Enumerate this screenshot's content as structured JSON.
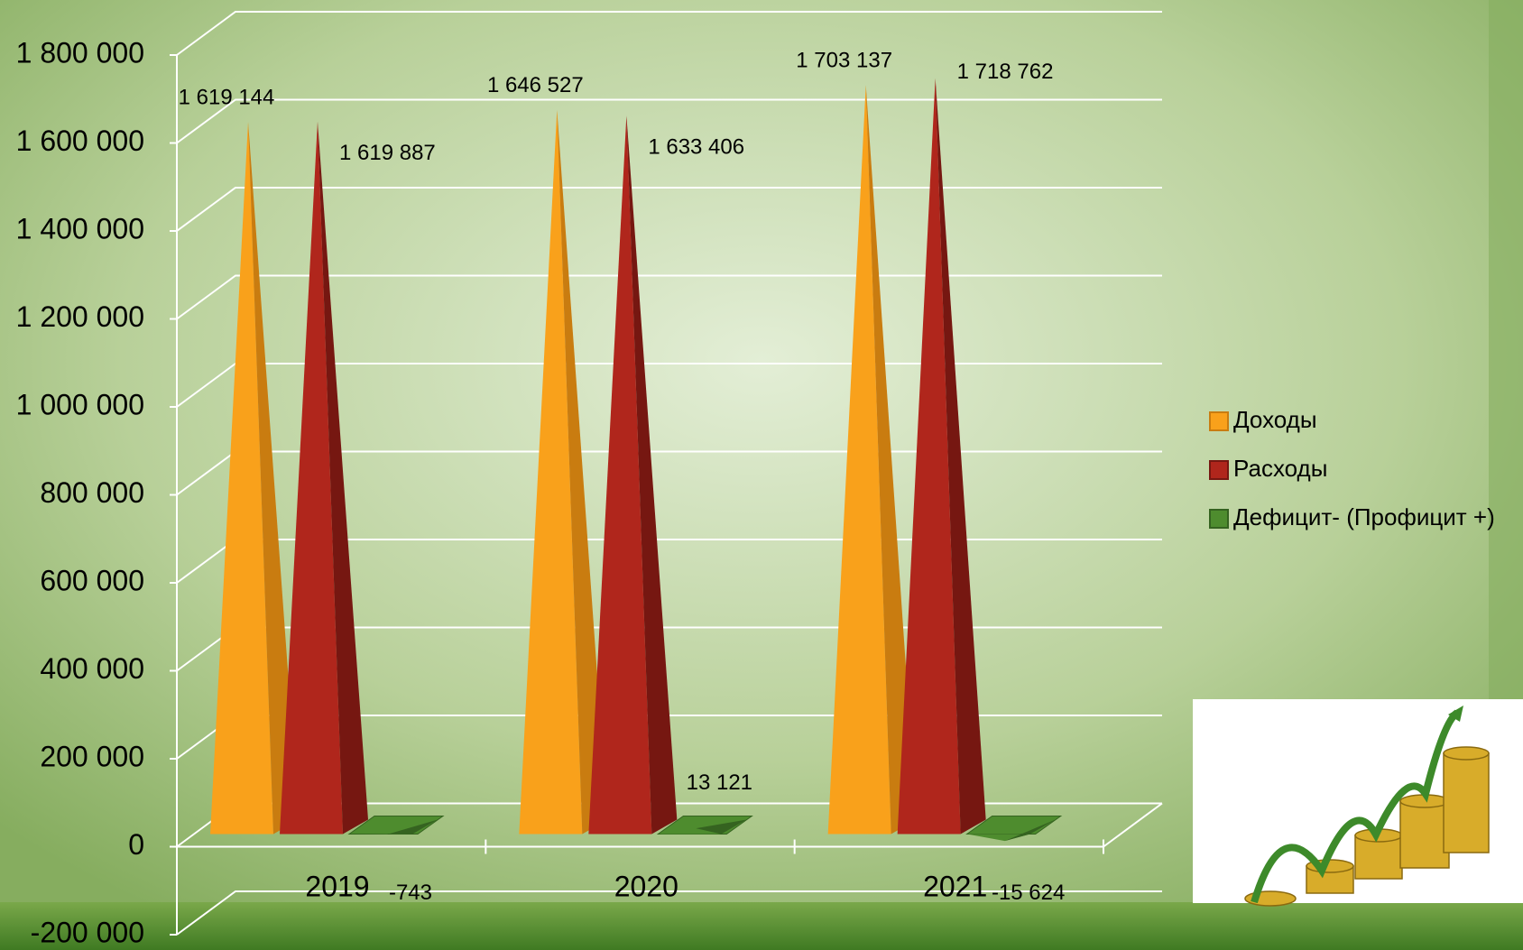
{
  "chart_data": {
    "type": "pyramid3d",
    "categories": [
      "2019",
      "2020",
      "2021"
    ],
    "series": [
      {
        "name": "Доходы",
        "color": "#f9a11b",
        "values": [
          1619144,
          1646527,
          1703137
        ],
        "value_labels": [
          "1 619 144",
          "1 646 527",
          "1 703 137"
        ]
      },
      {
        "name": "Расходы",
        "color": "#b0261c",
        "values": [
          1619887,
          1633406,
          1718762
        ],
        "value_labels": [
          "1 619 887",
          "1 633 406",
          "1 718 762"
        ]
      },
      {
        "name": "Дефицит- (Профицит +)",
        "color": "#4e8c2e",
        "values": [
          -743,
          13121,
          -15624
        ],
        "value_labels": [
          "-743",
          "13 121",
          "-15 624"
        ]
      }
    ],
    "ylim": [
      -200000,
      1800000
    ],
    "yticks": [
      {
        "value": -200000,
        "label": "-200 000"
      },
      0,
      {
        "value": 200000,
        "label": "200 000"
      },
      {
        "value": 400000,
        "label": "400 000"
      },
      {
        "value": 600000,
        "label": "600 000"
      },
      {
        "value": 800000,
        "label": "800 000"
      },
      {
        "value": 1000000,
        "label": "1 000 000"
      },
      {
        "value": 1200000,
        "label": "1 200 000"
      },
      {
        "value": 1400000,
        "label": "1 400 000"
      },
      {
        "value": 1600000,
        "label": "1 600 000"
      },
      {
        "value": 1800000,
        "label": "1 800 000"
      }
    ],
    "grid": true,
    "legend": "right"
  }
}
